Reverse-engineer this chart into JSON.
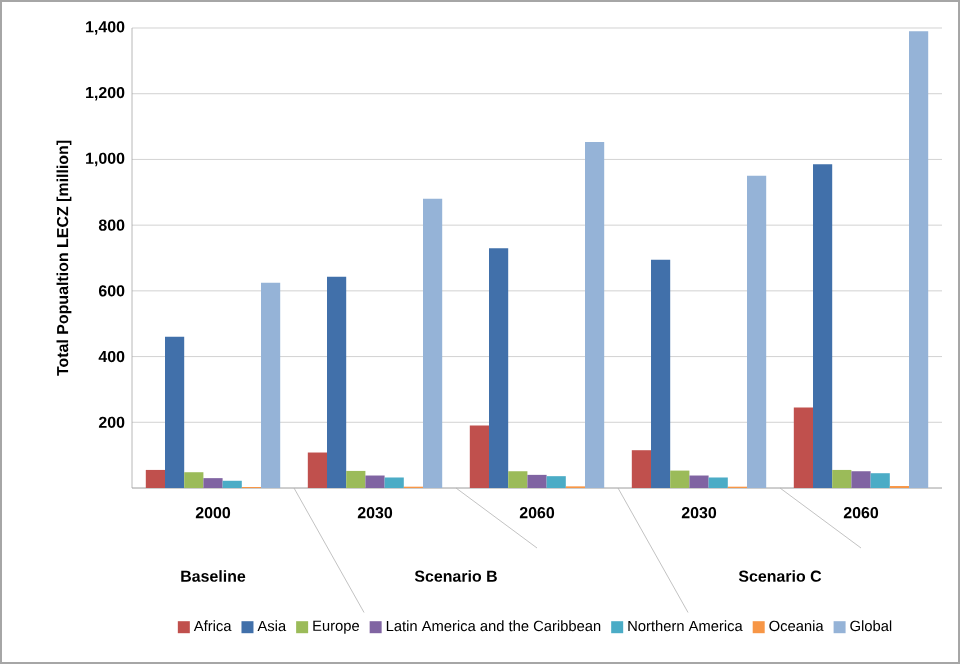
{
  "chart_data": {
    "type": "bar",
    "ylabel": "Total Popualtion LECZ [million]",
    "categories": [
      "2000",
      "2030",
      "2060",
      "2030",
      "2060"
    ],
    "annotations": [
      "Baseline",
      "Scenario B",
      "Scenario C"
    ],
    "series": [
      {
        "name": "Africa",
        "color": "#c0504d",
        "values": [
          55,
          108,
          190,
          115,
          245
        ]
      },
      {
        "name": "Asia",
        "color": "#4170aa",
        "values": [
          460,
          643,
          730,
          695,
          985
        ]
      },
      {
        "name": "Europe",
        "color": "#9bbb59",
        "values": [
          48,
          52,
          51,
          53,
          55
        ]
      },
      {
        "name": "Latin America and the Caribbean",
        "color": "#8064a2",
        "values": [
          30,
          38,
          40,
          38,
          51
        ]
      },
      {
        "name": "Northern America",
        "color": "#4bacc6",
        "values": [
          22,
          32,
          36,
          32,
          45
        ]
      },
      {
        "name": "Oceania",
        "color": "#f79646",
        "values": [
          3,
          4,
          5,
          4,
          6
        ]
      },
      {
        "name": "Global",
        "color": "#95b3d7",
        "values": [
          625,
          880,
          1053,
          950,
          1390
        ]
      }
    ],
    "ylim": [
      0,
      1400
    ],
    "yticks": [
      {
        "value": 0,
        "label": null
      },
      200,
      400,
      600,
      800,
      {
        "value": 1000,
        "label": "1,000"
      },
      {
        "value": 1200,
        "label": "1,200"
      },
      {
        "value": 1400,
        "label": "1,400"
      }
    ],
    "grid": "y",
    "legend": "bottom"
  }
}
